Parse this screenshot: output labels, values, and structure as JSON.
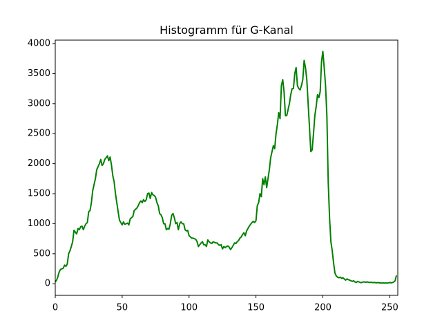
{
  "chart_data": {
    "type": "line",
    "title": "Histogramm für G-Kanal",
    "color": "#008000",
    "x": [
      0,
      1,
      2,
      3,
      4,
      5,
      6,
      7,
      8,
      9,
      10,
      11,
      12,
      13,
      14,
      15,
      16,
      17,
      18,
      19,
      20,
      21,
      22,
      23,
      24,
      25,
      26,
      27,
      28,
      29,
      30,
      31,
      32,
      33,
      34,
      35,
      36,
      37,
      38,
      39,
      40,
      41,
      42,
      43,
      44,
      45,
      46,
      47,
      48,
      49,
      50,
      51,
      52,
      53,
      54,
      55,
      56,
      57,
      58,
      59,
      60,
      61,
      62,
      63,
      64,
      65,
      66,
      67,
      68,
      69,
      70,
      71,
      72,
      73,
      74,
      75,
      76,
      77,
      78,
      79,
      80,
      81,
      82,
      83,
      84,
      85,
      86,
      87,
      88,
      89,
      90,
      91,
      92,
      93,
      94,
      95,
      96,
      97,
      98,
      99,
      100,
      101,
      102,
      103,
      104,
      105,
      106,
      107,
      108,
      109,
      110,
      111,
      112,
      113,
      114,
      115,
      116,
      117,
      118,
      119,
      120,
      121,
      122,
      123,
      124,
      125,
      126,
      127,
      128,
      129,
      130,
      131,
      132,
      133,
      134,
      135,
      136,
      137,
      138,
      139,
      140,
      141,
      142,
      143,
      144,
      145,
      146,
      147,
      148,
      149,
      150,
      151,
      152,
      153,
      154,
      155,
      156,
      157,
      158,
      159,
      160,
      161,
      162,
      163,
      164,
      165,
      166,
      167,
      168,
      169,
      170,
      171,
      172,
      173,
      174,
      175,
      176,
      177,
      178,
      179,
      180,
      181,
      182,
      183,
      184,
      185,
      186,
      187,
      188,
      189,
      190,
      191,
      192,
      193,
      194,
      195,
      196,
      197,
      198,
      199,
      200,
      201,
      202,
      203,
      204,
      205,
      206,
      207,
      208,
      209,
      210,
      211,
      212,
      213,
      214,
      215,
      216,
      217,
      218,
      219,
      220,
      221,
      222,
      223,
      224,
      225,
      226,
      227,
      228,
      229,
      230,
      231,
      232,
      233,
      234,
      235,
      236,
      237,
      238,
      239,
      240,
      241,
      242,
      243,
      244,
      245,
      246,
      247,
      248,
      249,
      250,
      251,
      252,
      253,
      254,
      255
    ],
    "values": [
      30,
      60,
      120,
      200,
      240,
      250,
      260,
      310,
      290,
      330,
      500,
      550,
      620,
      700,
      890,
      860,
      830,
      920,
      900,
      950,
      960,
      900,
      960,
      1000,
      1020,
      1200,
      1220,
      1350,
      1550,
      1650,
      1750,
      1900,
      1950,
      2000,
      2070,
      1970,
      2000,
      2070,
      2100,
      2130,
      2050,
      2110,
      1980,
      1800,
      1700,
      1500,
      1350,
      1200,
      1060,
      1020,
      980,
      1030,
      990,
      1000,
      1010,
      980,
      1080,
      1100,
      1120,
      1220,
      1240,
      1260,
      1300,
      1350,
      1380,
      1350,
      1400,
      1370,
      1400,
      1500,
      1510,
      1420,
      1520,
      1480,
      1470,
      1440,
      1350,
      1300,
      1170,
      1150,
      1100,
      1000,
      1000,
      900,
      920,
      910,
      1000,
      1140,
      1170,
      1100,
      1000,
      1020,
      900,
      1000,
      1030,
      1000,
      1000,
      900,
      880,
      890,
      800,
      780,
      760,
      760,
      750,
      740,
      700,
      620,
      650,
      680,
      700,
      650,
      650,
      620,
      730,
      700,
      680,
      670,
      700,
      690,
      680,
      680,
      650,
      640,
      650,
      580,
      620,
      600,
      620,
      630,
      610,
      570,
      600,
      640,
      680,
      670,
      700,
      720,
      760,
      780,
      820,
      850,
      800,
      880,
      920,
      960,
      990,
      1020,
      1040,
      1020,
      1050,
      1300,
      1350,
      1500,
      1450,
      1750,
      1650,
      1780,
      1600,
      1750,
      1900,
      2100,
      2200,
      2300,
      2250,
      2500,
      2650,
      2850,
      2750,
      3300,
      3400,
      3200,
      2800,
      2800,
      2900,
      3000,
      3150,
      3250,
      3250,
      3500,
      3600,
      3300,
      3250,
      3230,
      3300,
      3400,
      3720,
      3600,
      3400,
      3000,
      2600,
      2200,
      2230,
      2500,
      2800,
      2950,
      3150,
      3100,
      3200,
      3700,
      3870,
      3600,
      3300,
      2800,
      1700,
      1100,
      700,
      550,
      350,
      180,
      130,
      110,
      100,
      110,
      90,
      100,
      80,
      60,
      80,
      70,
      60,
      50,
      40,
      50,
      30,
      20,
      40,
      30,
      20,
      20,
      30,
      30,
      25,
      30,
      25,
      20,
      25,
      20,
      20,
      20,
      15,
      20,
      15,
      15,
      10,
      15,
      10,
      15,
      10,
      15,
      20,
      15,
      20,
      30,
      50,
      140
    ],
    "xlim": [
      0,
      256
    ],
    "ylim": [
      -193,
      4058
    ],
    "xticks": [
      0,
      50,
      100,
      150,
      200,
      250
    ],
    "yticks": [
      0,
      500,
      1000,
      1500,
      2000,
      2500,
      3000,
      3500,
      4000
    ]
  }
}
